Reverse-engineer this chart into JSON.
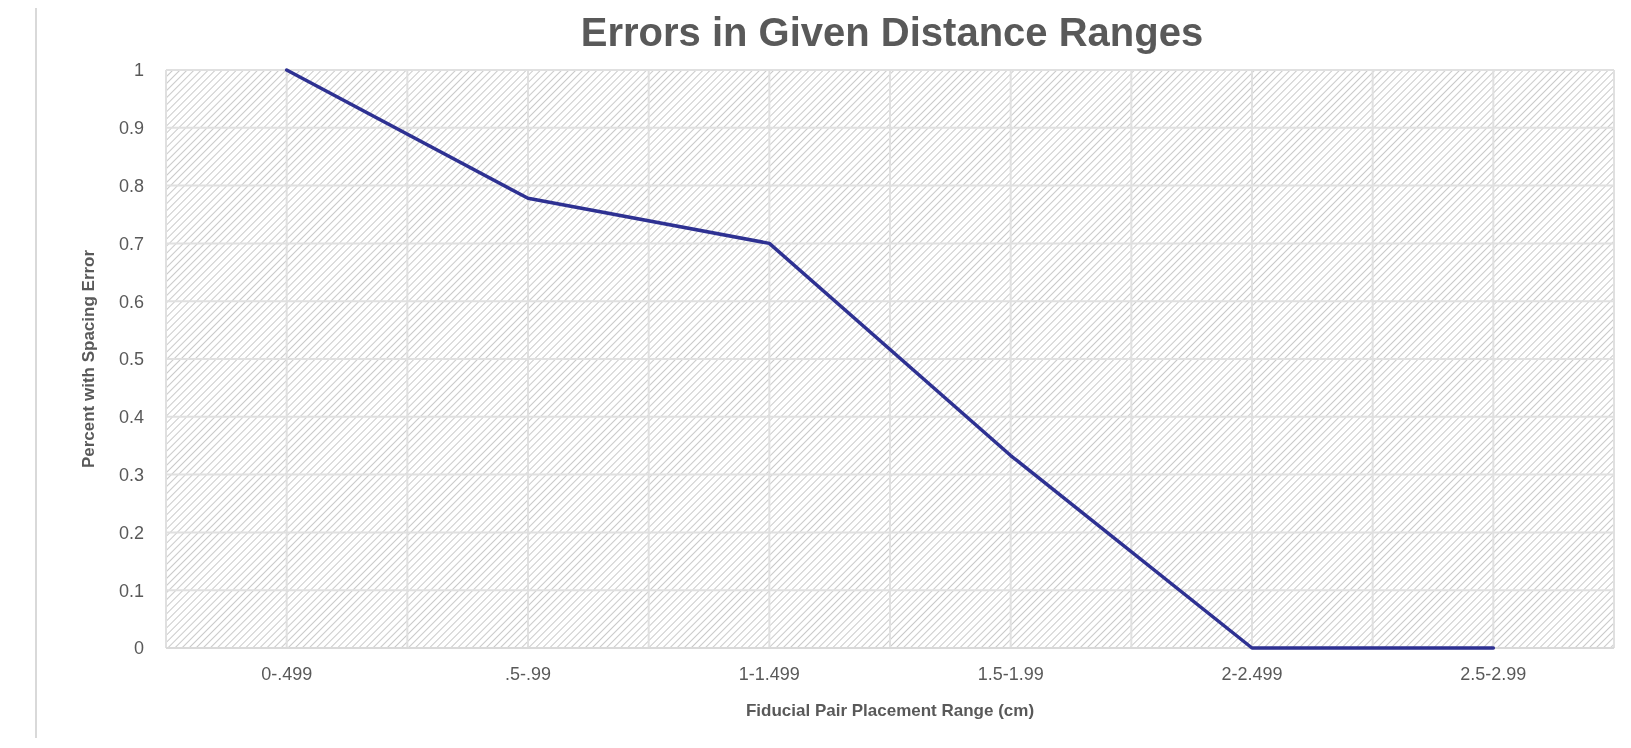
{
  "chart_data": {
    "type": "line",
    "title": "Errors in Given Distance Ranges",
    "xlabel": "Fiducial Pair Placement Range (cm)",
    "ylabel": "Percent with Spacing Error",
    "categories": [
      "0-.499",
      ".5-.99",
      "1-1.499",
      "1.5-1.99",
      "2-2.499",
      "2.5-2.99"
    ],
    "series": [
      {
        "color": "#2e3192",
        "values": [
          1,
          0.778,
          0.7,
          0.333,
          0,
          0
        ]
      }
    ],
    "ylim": [
      0,
      1
    ],
    "yticks": [
      0,
      0.1,
      0.2,
      0.3,
      0.4,
      0.5,
      0.6,
      0.7,
      0.8,
      0.9,
      1
    ],
    "grid": true,
    "marker": "none"
  }
}
